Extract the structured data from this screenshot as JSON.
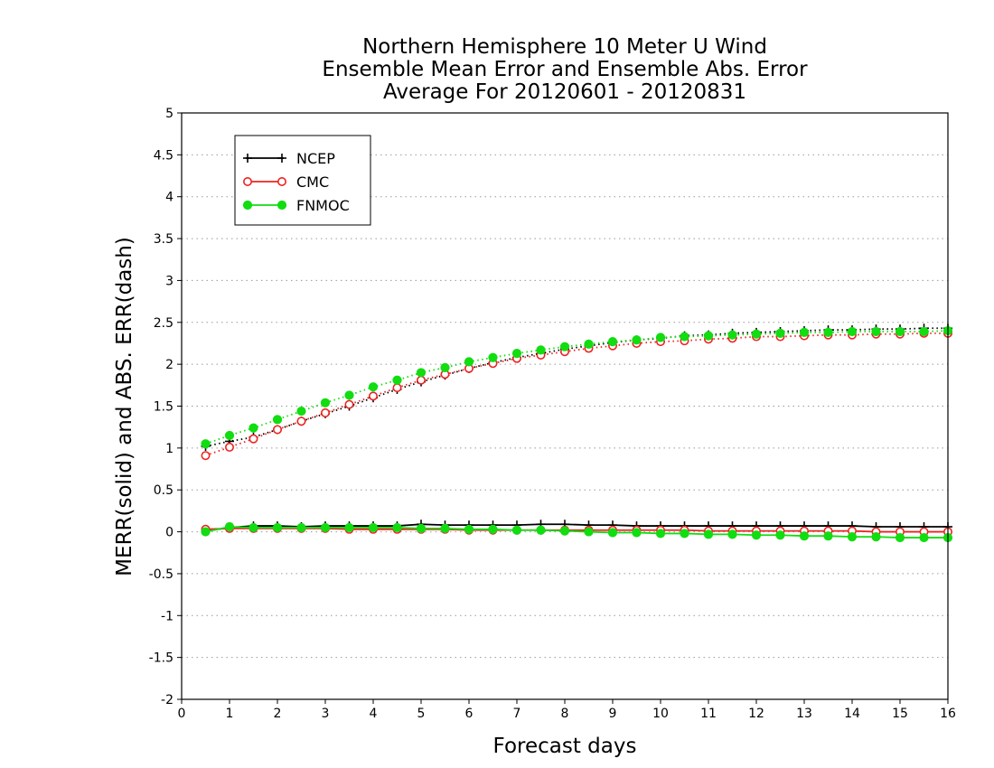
{
  "chart_data": {
    "type": "line",
    "title_lines": [
      "Northern Hemisphere 10 Meter U Wind",
      "Ensemble Mean Error and Ensemble Abs. Error",
      "Average For 20120601 - 20120831"
    ],
    "xlabel": "Forecast days",
    "ylabel": "MERR(solid) and ABS. ERR(dash)",
    "xlim": [
      0,
      16
    ],
    "ylim": [
      -2,
      5
    ],
    "xticks": [
      "0",
      "1",
      "2",
      "3",
      "4",
      "5",
      "6",
      "7",
      "8",
      "9",
      "10",
      "11",
      "12",
      "13",
      "14",
      "15",
      "16"
    ],
    "yticks": [
      "5",
      "4.5",
      "4",
      "3.5",
      "3",
      "2.5",
      "2",
      "1.5",
      "1",
      "0.5",
      "0",
      "-0.5",
      "-1",
      "-1.5",
      "-2"
    ],
    "ytick_values": [
      5,
      4.5,
      4,
      3.5,
      3,
      2.5,
      2,
      1.5,
      1,
      0.5,
      0,
      -0.5,
      -1,
      -1.5,
      -2
    ],
    "grid": "horizontal dotted",
    "legend_position": "top-left",
    "x": [
      0.5,
      1,
      1.5,
      2,
      2.5,
      3,
      3.5,
      4,
      4.5,
      5,
      5.5,
      6,
      6.5,
      7,
      7.5,
      8,
      8.5,
      9,
      9.5,
      10,
      10.5,
      11,
      11.5,
      12,
      12.5,
      13,
      13.5,
      14,
      14.5,
      15,
      15.5,
      16
    ],
    "series": [
      {
        "name": "NCEP",
        "color": "#000000",
        "marker": "plus",
        "merr": [
          0.01,
          0.05,
          0.07,
          0.07,
          0.06,
          0.07,
          0.07,
          0.07,
          0.07,
          0.09,
          0.08,
          0.08,
          0.08,
          0.08,
          0.09,
          0.09,
          0.08,
          0.08,
          0.07,
          0.07,
          0.07,
          0.07,
          0.07,
          0.07,
          0.07,
          0.07,
          0.07,
          0.07,
          0.06,
          0.06,
          0.06,
          0.06
        ],
        "abs_err": [
          1.02,
          1.08,
          1.13,
          1.22,
          1.32,
          1.41,
          1.5,
          1.6,
          1.7,
          1.79,
          1.87,
          1.95,
          2.02,
          2.08,
          2.13,
          2.18,
          2.22,
          2.26,
          2.29,
          2.31,
          2.34,
          2.35,
          2.37,
          2.38,
          2.39,
          2.4,
          2.41,
          2.41,
          2.42,
          2.42,
          2.43,
          2.43
        ]
      },
      {
        "name": "CMC",
        "color": "#ee2222",
        "marker": "open-circle",
        "merr": [
          0.03,
          0.04,
          0.04,
          0.04,
          0.04,
          0.04,
          0.03,
          0.03,
          0.03,
          0.03,
          0.03,
          0.02,
          0.02,
          0.02,
          0.02,
          0.02,
          0.02,
          0.02,
          0.02,
          0.02,
          0.02,
          0.01,
          0.01,
          0.01,
          0.01,
          0.01,
          0.01,
          0.01,
          0.0,
          0.0,
          0.0,
          0.0
        ],
        "abs_err": [
          0.91,
          1.01,
          1.11,
          1.22,
          1.32,
          1.42,
          1.52,
          1.62,
          1.72,
          1.81,
          1.88,
          1.95,
          2.01,
          2.07,
          2.11,
          2.15,
          2.19,
          2.22,
          2.25,
          2.27,
          2.28,
          2.3,
          2.31,
          2.33,
          2.33,
          2.34,
          2.35,
          2.35,
          2.36,
          2.36,
          2.37,
          2.37
        ]
      },
      {
        "name": "FNMOC",
        "color": "#11dd11",
        "marker": "filled-circle",
        "merr": [
          0.0,
          0.06,
          0.05,
          0.05,
          0.05,
          0.05,
          0.05,
          0.05,
          0.05,
          0.04,
          0.04,
          0.03,
          0.03,
          0.02,
          0.02,
          0.01,
          0.0,
          -0.01,
          -0.01,
          -0.02,
          -0.02,
          -0.03,
          -0.03,
          -0.04,
          -0.04,
          -0.05,
          -0.05,
          -0.06,
          -0.06,
          -0.07,
          -0.07,
          -0.07
        ],
        "abs_err": [
          1.05,
          1.15,
          1.24,
          1.34,
          1.44,
          1.54,
          1.63,
          1.73,
          1.81,
          1.9,
          1.96,
          2.03,
          2.08,
          2.13,
          2.17,
          2.21,
          2.24,
          2.27,
          2.29,
          2.32,
          2.33,
          2.34,
          2.35,
          2.36,
          2.37,
          2.38,
          2.38,
          2.39,
          2.39,
          2.39,
          2.39,
          2.4
        ]
      }
    ]
  }
}
